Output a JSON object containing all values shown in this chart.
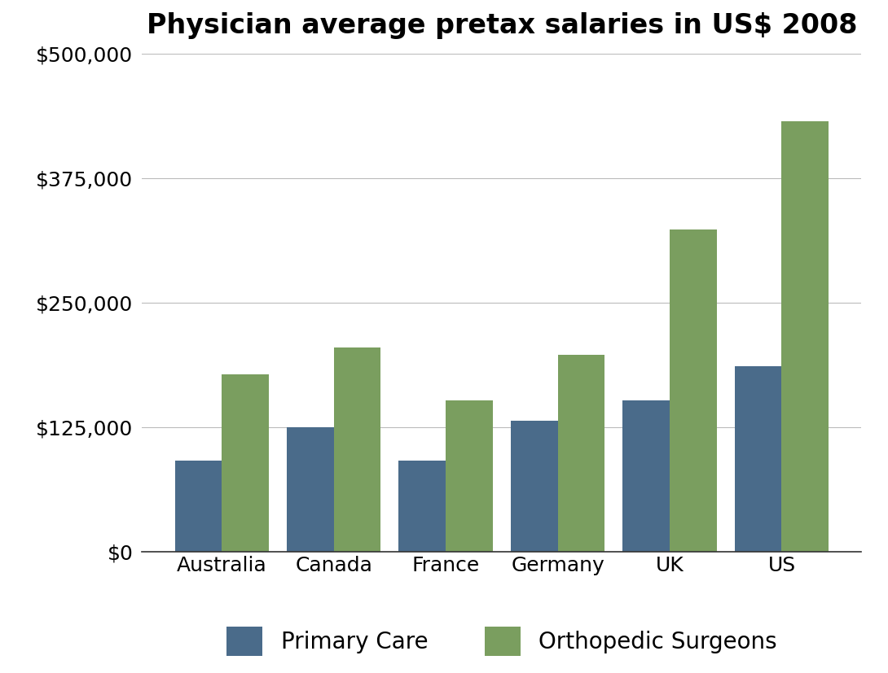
{
  "title": "Physician average pretax salaries in US$ 2008",
  "categories": [
    "Australia",
    "Canada",
    "France",
    "Germany",
    "UK",
    "US"
  ],
  "primary_care": [
    92000,
    125000,
    92000,
    132000,
    152000,
    186000
  ],
  "orthopedic": [
    178000,
    205000,
    152000,
    198000,
    324000,
    432000
  ],
  "primary_care_color": "#4a6b8a",
  "orthopedic_color": "#7a9e5f",
  "background_color": "#ffffff",
  "ylim": [
    0,
    500000
  ],
  "yticks": [
    0,
    125000,
    250000,
    375000,
    500000
  ],
  "legend_labels": [
    "Primary Care",
    "Orthopedic Surgeons"
  ],
  "title_fontsize": 24,
  "tick_fontsize": 18,
  "legend_fontsize": 20,
  "bar_width": 0.42,
  "bar_gap": 0.0,
  "grid_color": "#bbbbbb"
}
